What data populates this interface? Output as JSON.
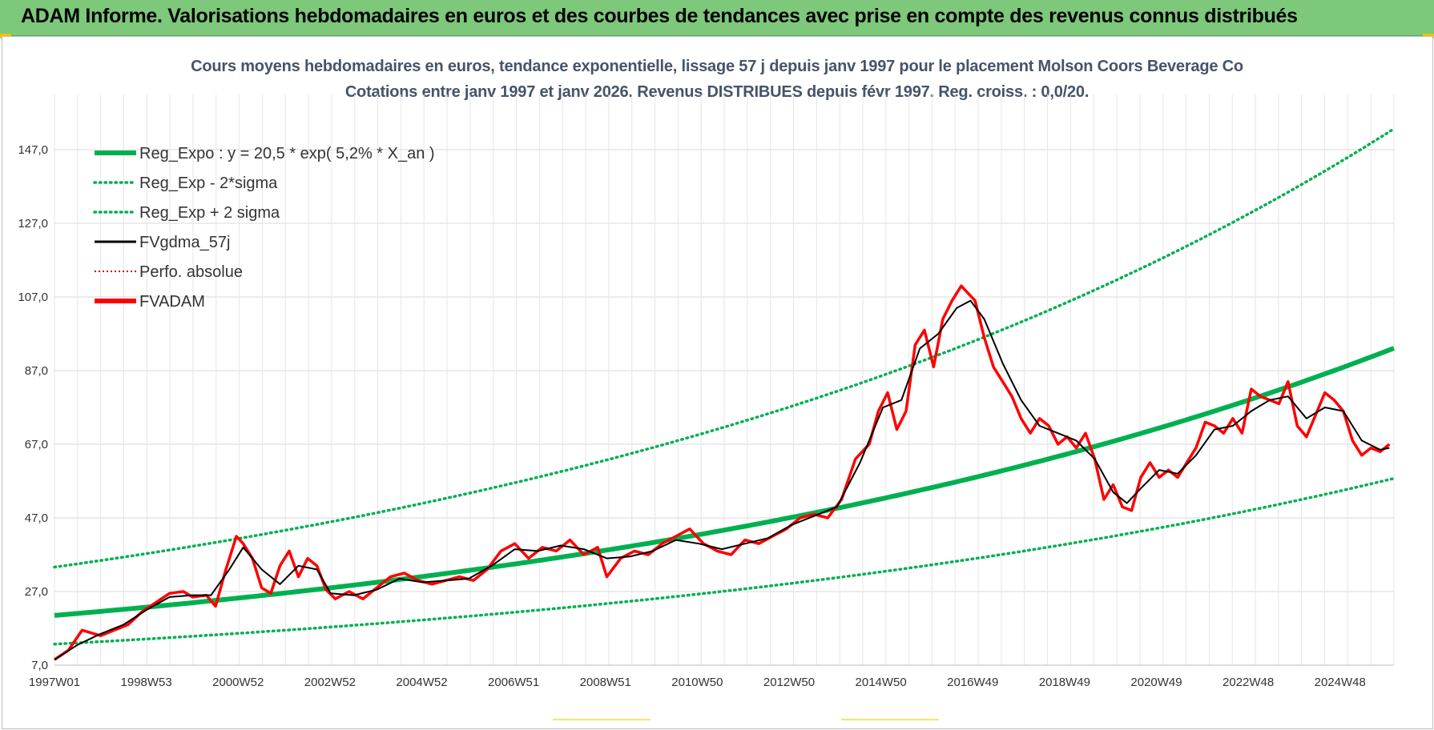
{
  "header": {
    "title": "ADAM Informe. Valorisations hebdomadaires en euros et des courbes de tendances avec prise en compte des revenus connus distribués"
  },
  "colors": {
    "banner": "#7dc87a",
    "reg_expo": "#00b050",
    "fvgdma": "#000000",
    "fvadam": "#ff0000",
    "perfo": "#c00000",
    "grid": "#d9d9d9",
    "title": "#44546a"
  },
  "chart_data": {
    "type": "line",
    "title_line1": "Cours moyens hebdomadaires en euros, tendance exponentielle, lissage 57 j depuis janv 1997 pour le placement Molson Coors Beverage Co",
    "title_line2": "Cotations entre janv 1997 et janv 2026. Revenus DISTRIBUES depuis févr 1997. Reg. croiss. : 0,0/20.",
    "xlabel": "",
    "ylabel": "",
    "ylim": [
      7.0,
      162.0
    ],
    "y_ticks": [
      "7,0",
      "27,0",
      "47,0",
      "67,0",
      "87,0",
      "107,0",
      "127,0",
      "147,0"
    ],
    "x_ticks": [
      "1997W01",
      "1998W53",
      "2000W52",
      "2002W52",
      "2004W52",
      "2006W51",
      "2008W51",
      "2010W50",
      "2012W50",
      "2014W50",
      "2016W49",
      "2018W49",
      "2020W49",
      "2022W48",
      "2024W48"
    ],
    "x_range_years": [
      1997.0,
      2026.1
    ],
    "grid": true,
    "legend_position": "top-left",
    "legend": [
      {
        "key": "reg",
        "label": "Reg_Expo : y = 20,5 * exp( 5,2% *  X_an )",
        "color": "#00b050",
        "style": "solid-thick"
      },
      {
        "key": "minus",
        "label": "Reg_Exp - 2*sigma",
        "color": "#00b050",
        "style": "dotted"
      },
      {
        "key": "plus",
        "label": "Reg_Exp + 2 sigma",
        "color": "#00b050",
        "style": "dotted"
      },
      {
        "key": "fvgdma",
        "label": "FVgdma_57j",
        "color": "#000000",
        "style": "solid"
      },
      {
        "key": "perfo",
        "label": "Perfo. absolue",
        "color": "#c00000",
        "style": "dotted-thin"
      },
      {
        "key": "fvadam",
        "label": "FVADAM",
        "color": "#ff0000",
        "style": "solid-thick"
      }
    ],
    "regression": {
      "a": 20.5,
      "rate": 0.052,
      "minus_factor": 0.62,
      "plus_factor": 1.64
    },
    "series": [
      {
        "name": "FVADAM",
        "x": [
          1997.0,
          1997.3,
          1997.6,
          1998.0,
          1998.3,
          1998.6,
          1998.9,
          1999.2,
          1999.5,
          1999.8,
          2000.0,
          2000.3,
          2000.5,
          2000.7,
          2000.95,
          2001.1,
          2001.3,
          2001.5,
          2001.7,
          2001.9,
          2002.1,
          2002.3,
          2002.5,
          2002.7,
          2002.9,
          2003.1,
          2003.4,
          2003.7,
          2004.0,
          2004.3,
          2004.6,
          2004.9,
          2005.2,
          2005.5,
          2005.8,
          2006.1,
          2006.4,
          2006.7,
          2007.0,
          2007.3,
          2007.6,
          2007.9,
          2008.2,
          2008.5,
          2008.8,
          2009.0,
          2009.3,
          2009.6,
          2009.9,
          2010.2,
          2010.5,
          2010.8,
          2011.1,
          2011.4,
          2011.7,
          2012.0,
          2012.3,
          2012.6,
          2012.9,
          2013.2,
          2013.5,
          2013.8,
          2014.1,
          2014.4,
          2014.7,
          2014.9,
          2015.1,
          2015.3,
          2015.5,
          2015.7,
          2015.9,
          2016.1,
          2016.3,
          2016.5,
          2016.7,
          2016.85,
          2017.0,
          2017.2,
          2017.4,
          2017.6,
          2017.8,
          2018.0,
          2018.2,
          2018.4,
          2018.6,
          2018.8,
          2019.0,
          2019.2,
          2019.4,
          2019.6,
          2019.8,
          2020.0,
          2020.2,
          2020.4,
          2020.6,
          2020.8,
          2021.0,
          2021.2,
          2021.4,
          2021.6,
          2021.8,
          2022.0,
          2022.2,
          2022.4,
          2022.6,
          2022.8,
          2023.0,
          2023.2,
          2023.4,
          2023.6,
          2023.8,
          2024.0,
          2024.2,
          2024.4,
          2024.6,
          2024.8,
          2025.0,
          2025.2,
          2025.4,
          2025.6,
          2025.8,
          2026.0
        ],
        "values": [
          8.5,
          11.0,
          16.5,
          15.0,
          16.5,
          18.0,
          21.5,
          24.0,
          26.5,
          27.0,
          25.5,
          26.0,
          23.0,
          32.0,
          42.0,
          40.0,
          36.0,
          28.0,
          26.5,
          34.0,
          38.0,
          31.0,
          36.0,
          34.0,
          27.5,
          25.0,
          27.0,
          25.0,
          28.0,
          31.0,
          32.0,
          30.0,
          29.0,
          30.0,
          31.0,
          30.0,
          33.0,
          38.0,
          40.0,
          36.0,
          39.0,
          38.0,
          41.0,
          37.0,
          39.0,
          31.0,
          36.0,
          38.0,
          37.0,
          40.0,
          42.0,
          44.0,
          40.0,
          38.0,
          37.0,
          41.0,
          40.0,
          42.0,
          44.0,
          47.0,
          48.0,
          47.0,
          52.0,
          63.0,
          67.0,
          76.0,
          81.0,
          71.0,
          76.0,
          94.0,
          98.0,
          88.0,
          101.0,
          106.0,
          110.0,
          108.0,
          106.0,
          96.0,
          88.0,
          84.0,
          80.0,
          74.0,
          70.0,
          74.0,
          72.0,
          67.0,
          69.0,
          66.0,
          70.0,
          63.0,
          52.0,
          56.0,
          50.0,
          49.0,
          58.0,
          62.0,
          58.0,
          60.0,
          58.0,
          62.0,
          66.0,
          73.0,
          72.0,
          70.0,
          74.0,
          70.0,
          82.0,
          80.0,
          79.0,
          78.0,
          84.0,
          72.0,
          69.0,
          75.0,
          81.0,
          79.0,
          76.0,
          68.0,
          64.0,
          66.0,
          65.0,
          67.0
        ]
      },
      {
        "name": "FVgdma_57j",
        "x": [
          1997.0,
          1997.5,
          1998.0,
          1998.5,
          1999.0,
          1999.5,
          2000.0,
          2000.4,
          2000.8,
          2001.1,
          2001.5,
          2001.9,
          2002.3,
          2002.7,
          2003.0,
          2003.5,
          2004.0,
          2004.5,
          2005.0,
          2005.5,
          2006.0,
          2006.5,
          2007.0,
          2007.5,
          2008.0,
          2008.5,
          2009.0,
          2009.5,
          2010.0,
          2010.5,
          2011.0,
          2011.5,
          2012.0,
          2012.5,
          2013.0,
          2013.5,
          2014.0,
          2014.5,
          2015.0,
          2015.4,
          2015.8,
          2016.2,
          2016.6,
          2016.9,
          2017.2,
          2017.6,
          2018.0,
          2018.4,
          2018.8,
          2019.2,
          2019.6,
          2020.0,
          2020.3,
          2020.6,
          2021.0,
          2021.4,
          2021.8,
          2022.2,
          2022.6,
          2023.0,
          2023.4,
          2023.8,
          2024.2,
          2024.6,
          2025.0,
          2025.4,
          2025.8,
          2026.0
        ],
        "values": [
          8.5,
          12.5,
          15.5,
          18.0,
          22.0,
          25.5,
          26.0,
          26.0,
          33.0,
          39.0,
          33.0,
          29.0,
          34.0,
          33.0,
          26.5,
          26.0,
          27.5,
          30.5,
          29.5,
          30.0,
          30.5,
          34.0,
          38.5,
          38.0,
          39.5,
          38.5,
          36.0,
          36.5,
          38.0,
          41.0,
          40.0,
          38.5,
          40.0,
          41.5,
          45.0,
          47.5,
          50.0,
          62.0,
          77.0,
          79.0,
          93.0,
          97.0,
          104.0,
          106.0,
          101.0,
          89.0,
          79.0,
          72.0,
          70.0,
          68.0,
          63.0,
          54.0,
          51.0,
          55.0,
          60.0,
          59.0,
          64.0,
          71.0,
          72.0,
          76.0,
          79.0,
          80.0,
          74.0,
          77.0,
          76.0,
          68.0,
          65.5,
          66.0
        ]
      }
    ]
  }
}
